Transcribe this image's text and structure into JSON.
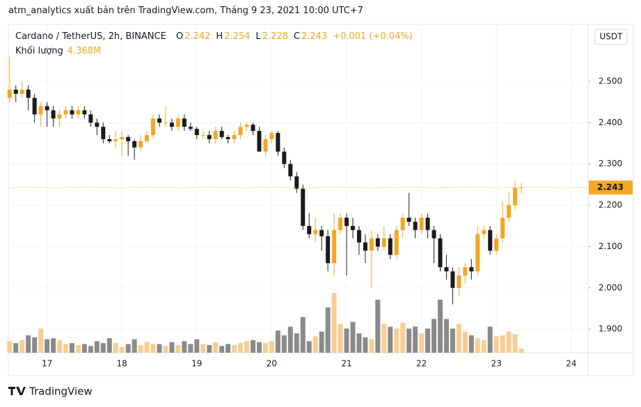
{
  "header": {
    "text": "atm_analytics xuất bản trên TradingView.com, Tháng 9 23, 2021 10:00 UTC+7"
  },
  "footer": {
    "brand": "TradingView"
  },
  "chart_data": {
    "type": "candlestick",
    "symbol": "Cardano / TetherUS, 2h, BINANCE",
    "ohlc_names": [
      "O",
      "H",
      "L",
      "C"
    ],
    "change": "+0.001 (+0.04%)",
    "volume_name": "Khối lượng",
    "volume_label": "4.368M",
    "currency": "USDT",
    "up_color": "#f5a623",
    "down_color": "#1b1b1b",
    "volume_up_color": "#f8cd92",
    "volume_down_color": "#8a8a8a",
    "ohlc": [
      [
        2.46,
        2.56,
        2.45,
        2.48
      ],
      [
        2.48,
        2.49,
        2.45,
        2.47
      ],
      [
        2.47,
        2.5,
        2.46,
        2.48
      ],
      [
        2.48,
        2.49,
        2.43,
        2.46
      ],
      [
        2.46,
        2.47,
        2.4,
        2.42
      ],
      [
        2.42,
        2.45,
        2.39,
        2.44
      ],
      [
        2.44,
        2.45,
        2.39,
        2.43
      ],
      [
        2.43,
        2.44,
        2.39,
        2.41
      ],
      [
        2.41,
        2.43,
        2.39,
        2.42
      ],
      [
        2.42,
        2.44,
        2.41,
        2.43
      ],
      [
        2.43,
        2.44,
        2.41,
        2.42
      ],
      [
        2.42,
        2.44,
        2.41,
        2.43
      ],
      [
        2.43,
        2.44,
        2.41,
        2.42
      ],
      [
        2.42,
        2.43,
        2.39,
        2.4
      ],
      [
        2.4,
        2.41,
        2.37,
        2.39
      ],
      [
        2.39,
        2.4,
        2.35,
        2.36
      ],
      [
        2.36,
        2.37,
        2.35,
        2.355
      ],
      [
        2.355,
        2.38,
        2.34,
        2.36
      ],
      [
        2.36,
        2.38,
        2.32,
        2.365
      ],
      [
        2.365,
        2.37,
        2.32,
        2.355
      ],
      [
        2.355,
        2.36,
        2.31,
        2.34
      ],
      [
        2.34,
        2.37,
        2.33,
        2.355
      ],
      [
        2.355,
        2.38,
        2.35,
        2.37
      ],
      [
        2.37,
        2.42,
        2.36,
        2.41
      ],
      [
        2.41,
        2.42,
        2.39,
        2.4
      ],
      [
        2.4,
        2.44,
        2.39,
        2.4
      ],
      [
        2.4,
        2.41,
        2.38,
        2.39
      ],
      [
        2.39,
        2.42,
        2.38,
        2.41
      ],
      [
        2.41,
        2.42,
        2.38,
        2.39
      ],
      [
        2.39,
        2.4,
        2.38,
        2.385
      ],
      [
        2.385,
        2.39,
        2.36,
        2.37
      ],
      [
        2.37,
        2.38,
        2.36,
        2.37
      ],
      [
        2.37,
        2.38,
        2.35,
        2.36
      ],
      [
        2.36,
        2.39,
        2.35,
        2.38
      ],
      [
        2.38,
        2.39,
        2.36,
        2.365
      ],
      [
        2.365,
        2.37,
        2.35,
        2.36
      ],
      [
        2.36,
        2.38,
        2.35,
        2.37
      ],
      [
        2.37,
        2.4,
        2.36,
        2.39
      ],
      [
        2.39,
        2.4,
        2.38,
        2.395
      ],
      [
        2.395,
        2.4,
        2.37,
        2.38
      ],
      [
        2.38,
        2.39,
        2.33,
        2.33
      ],
      [
        2.33,
        2.37,
        2.32,
        2.36
      ],
      [
        2.36,
        2.38,
        2.35,
        2.375
      ],
      [
        2.375,
        2.38,
        2.32,
        2.33
      ],
      [
        2.33,
        2.34,
        2.29,
        2.3
      ],
      [
        2.3,
        2.31,
        2.26,
        2.27
      ],
      [
        2.27,
        2.28,
        2.23,
        2.24
      ],
      [
        2.24,
        2.25,
        2.14,
        2.15
      ],
      [
        2.15,
        2.18,
        2.12,
        2.13
      ],
      [
        2.13,
        2.17,
        2.11,
        2.14
      ],
      [
        2.14,
        2.15,
        2.09,
        2.125
      ],
      [
        2.125,
        2.14,
        2.04,
        2.06
      ],
      [
        2.06,
        2.18,
        2.03,
        2.14
      ],
      [
        2.14,
        2.18,
        2.13,
        2.17
      ],
      [
        2.17,
        2.18,
        2.03,
        2.15
      ],
      [
        2.15,
        2.17,
        2.12,
        2.14
      ],
      [
        2.14,
        2.15,
        2.08,
        2.11
      ],
      [
        2.11,
        2.13,
        2.06,
        2.09
      ],
      [
        2.09,
        2.14,
        2.0,
        2.12
      ],
      [
        2.12,
        2.13,
        2.09,
        2.1
      ],
      [
        2.1,
        2.15,
        2.09,
        2.12
      ],
      [
        2.12,
        2.13,
        2.07,
        2.08
      ],
      [
        2.08,
        2.15,
        2.07,
        2.14
      ],
      [
        2.14,
        2.18,
        2.12,
        2.17
      ],
      [
        2.17,
        2.23,
        2.15,
        2.16
      ],
      [
        2.16,
        2.17,
        2.12,
        2.14
      ],
      [
        2.14,
        2.18,
        2.13,
        2.17
      ],
      [
        2.17,
        2.18,
        2.12,
        2.14
      ],
      [
        2.14,
        2.15,
        2.06,
        2.12
      ],
      [
        2.12,
        2.13,
        2.04,
        2.05
      ],
      [
        2.05,
        2.08,
        2.02,
        2.04
      ],
      [
        2.04,
        2.05,
        1.96,
        2.0
      ],
      [
        2.0,
        2.05,
        1.98,
        2.03
      ],
      [
        2.03,
        2.06,
        2.01,
        2.05
      ],
      [
        2.05,
        2.07,
        2.02,
        2.04
      ],
      [
        2.04,
        2.15,
        2.03,
        2.13
      ],
      [
        2.13,
        2.15,
        2.12,
        2.14
      ],
      [
        2.14,
        2.15,
        2.08,
        2.09
      ],
      [
        2.09,
        2.13,
        2.08,
        2.12
      ],
      [
        2.12,
        2.21,
        2.11,
        2.17
      ],
      [
        2.17,
        2.23,
        2.16,
        2.2
      ],
      [
        2.2,
        2.26,
        2.19,
        2.242
      ],
      [
        2.242,
        2.254,
        2.228,
        2.243
      ]
    ],
    "volume": [
      12,
      10,
      13,
      18,
      16,
      25,
      14,
      15,
      13,
      9,
      10,
      8,
      9,
      7,
      12,
      10,
      15,
      10,
      6,
      9,
      14,
      8,
      11,
      9,
      9,
      7,
      11,
      8,
      12,
      9,
      14,
      9,
      8,
      11,
      7,
      9,
      8,
      10,
      12,
      13,
      11,
      10,
      12,
      23,
      18,
      27,
      20,
      37,
      12,
      17,
      22,
      47,
      62,
      30,
      25,
      32,
      20,
      16,
      14,
      55,
      30,
      27,
      25,
      31,
      25,
      27,
      20,
      25,
      35,
      55,
      35,
      25,
      30,
      22,
      18,
      15,
      13,
      27,
      17,
      18,
      22,
      19,
      4.368
    ],
    "xlim": [
      -0.2,
      92.7
    ],
    "xticks": [
      {
        "value": 6,
        "label": "17"
      },
      {
        "value": 18,
        "label": "18"
      },
      {
        "value": 30,
        "label": "19"
      },
      {
        "value": 42,
        "label": "20"
      },
      {
        "value": 54,
        "label": "21"
      },
      {
        "value": 66,
        "label": "22"
      },
      {
        "value": 78,
        "label": "23"
      },
      {
        "value": 90,
        "label": "24"
      }
    ],
    "ylim": [
      1.843,
      2.638
    ],
    "yticks": [
      {
        "value": 1.9,
        "label": "1.900"
      },
      {
        "value": 2.0,
        "label": "2.000"
      },
      {
        "value": 2.1,
        "label": "2.100"
      },
      {
        "value": 2.2,
        "label": "2.200"
      },
      {
        "value": 2.3,
        "label": "2.300"
      },
      {
        "value": 2.4,
        "label": "2.400"
      },
      {
        "value": 2.5,
        "label": "2.500"
      }
    ],
    "grid": true
  }
}
